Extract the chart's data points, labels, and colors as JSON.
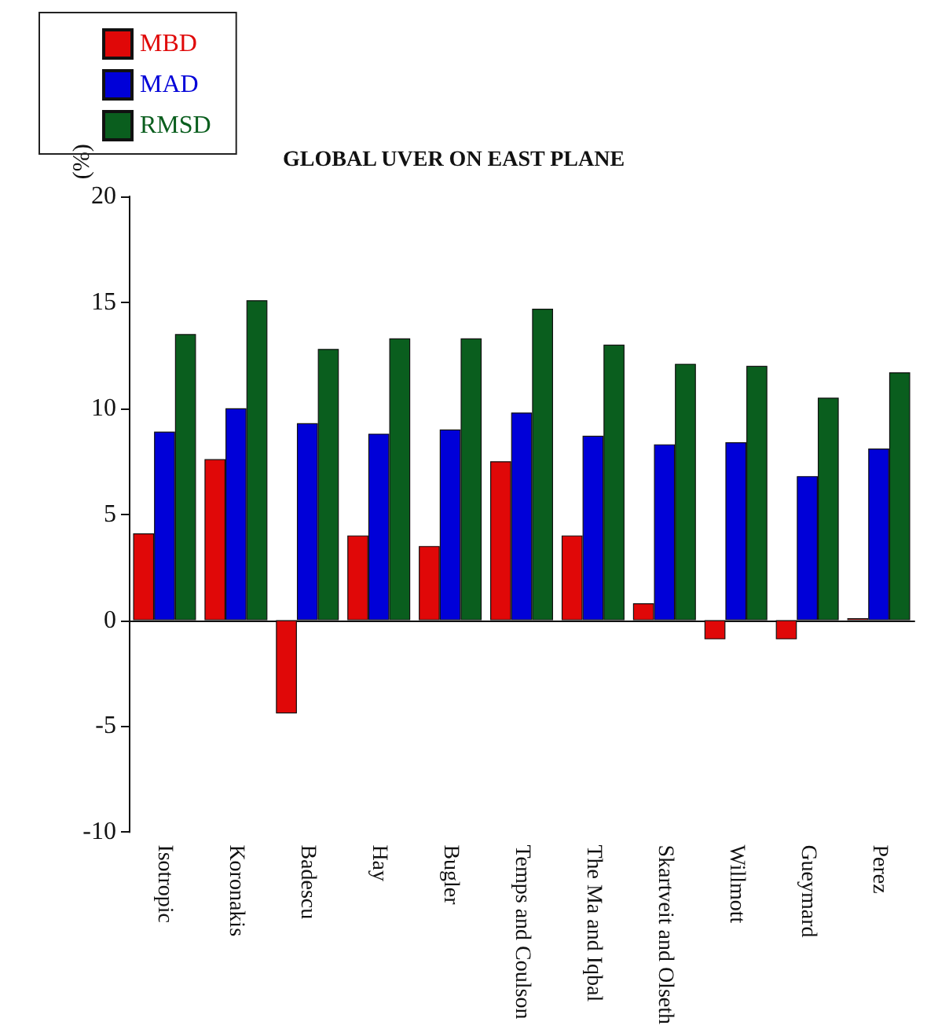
{
  "chart_data": {
    "type": "bar",
    "title": "GLOBAL UVER ON EAST PLANE",
    "ylabel": "(%)",
    "categories": [
      "Isotropic",
      "Koronakis",
      "Badescu",
      "Hay",
      "Bugler",
      "Temps and Coulson",
      "The Ma and Iqbal",
      "Skartveit and Olseth",
      "Willmott",
      "Gueymard",
      "Perez"
    ],
    "series": [
      {
        "name": "MBD",
        "color": "#e00808",
        "values": [
          4.1,
          7.6,
          -4.4,
          4.0,
          3.5,
          7.5,
          4.0,
          0.8,
          -0.9,
          -0.9,
          0.1
        ]
      },
      {
        "name": "MAD",
        "color": "#0000d8",
        "values": [
          8.9,
          10.0,
          9.3,
          8.8,
          9.0,
          9.8,
          8.7,
          8.3,
          8.4,
          6.8,
          8.1
        ]
      },
      {
        "name": "RMSD",
        "color": "#0a5e1e",
        "values": [
          13.5,
          15.1,
          12.8,
          13.3,
          13.3,
          14.7,
          13.0,
          12.1,
          12.0,
          10.5,
          11.7
        ]
      }
    ],
    "ylim": [
      -10,
      20
    ],
    "yticks": [
      -10,
      -5,
      0,
      5,
      10,
      15,
      20
    ],
    "legend": "top left"
  }
}
